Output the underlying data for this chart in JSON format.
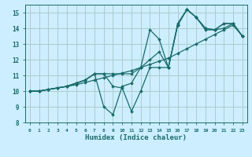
{
  "xlabel": "Humidex (Indice chaleur)",
  "bg_color": "#cceeff",
  "grid_color": "#aacccc",
  "line_color": "#1a6b6b",
  "xlim": [
    -0.5,
    23.5
  ],
  "ylim": [
    8,
    15.5
  ],
  "xticks": [
    0,
    1,
    2,
    3,
    4,
    5,
    6,
    7,
    8,
    9,
    10,
    11,
    12,
    13,
    14,
    15,
    16,
    17,
    18,
    19,
    20,
    21,
    22,
    23
  ],
  "yticks": [
    8,
    9,
    10,
    11,
    12,
    13,
    14,
    15
  ],
  "lines": [
    {
      "x": [
        0,
        1,
        2,
        3,
        4,
        5,
        6,
        7,
        8,
        9,
        10,
        11,
        12,
        13,
        14,
        15,
        16,
        17,
        18,
        19,
        20,
        21,
        22,
        23
      ],
      "y": [
        10,
        10,
        10.1,
        10.2,
        10.3,
        10.4,
        10.55,
        10.7,
        10.85,
        11.0,
        11.15,
        11.3,
        11.5,
        11.7,
        11.9,
        12.1,
        12.4,
        12.7,
        13.0,
        13.3,
        13.6,
        13.9,
        14.2,
        13.5
      ]
    },
    {
      "x": [
        0,
        1,
        2,
        3,
        4,
        5,
        6,
        7,
        8,
        9,
        10,
        11,
        12,
        13,
        14,
        15,
        16,
        17,
        18,
        19,
        20,
        21,
        22,
        23
      ],
      "y": [
        10,
        10,
        10.1,
        10.2,
        10.3,
        10.5,
        10.7,
        11.1,
        11.1,
        11.1,
        11.1,
        11.1,
        11.5,
        12.0,
        12.5,
        11.5,
        14.2,
        15.2,
        14.7,
        14.0,
        13.9,
        14.0,
        14.3,
        13.5
      ]
    },
    {
      "x": [
        0,
        1,
        2,
        3,
        4,
        5,
        6,
        7,
        8,
        9,
        10,
        11,
        12,
        13,
        14,
        15,
        16,
        17,
        18,
        19,
        20,
        21,
        22,
        23
      ],
      "y": [
        10,
        10,
        10.1,
        10.2,
        10.3,
        10.5,
        10.7,
        11.1,
        9.0,
        8.5,
        10.3,
        10.5,
        11.5,
        13.9,
        13.3,
        11.5,
        14.3,
        15.2,
        14.7,
        13.9,
        13.9,
        14.3,
        14.3,
        13.5
      ]
    },
    {
      "x": [
        0,
        1,
        2,
        3,
        4,
        5,
        6,
        7,
        8,
        9,
        10,
        11,
        12,
        13,
        14,
        15,
        16,
        17,
        18,
        19,
        20,
        21,
        22,
        23
      ],
      "y": [
        10,
        10,
        10.1,
        10.2,
        10.3,
        10.5,
        10.7,
        11.1,
        11.1,
        10.3,
        10.2,
        8.7,
        10.0,
        11.5,
        11.5,
        11.5,
        14.2,
        15.2,
        14.7,
        14.0,
        13.9,
        14.3,
        14.3,
        13.5
      ]
    }
  ]
}
